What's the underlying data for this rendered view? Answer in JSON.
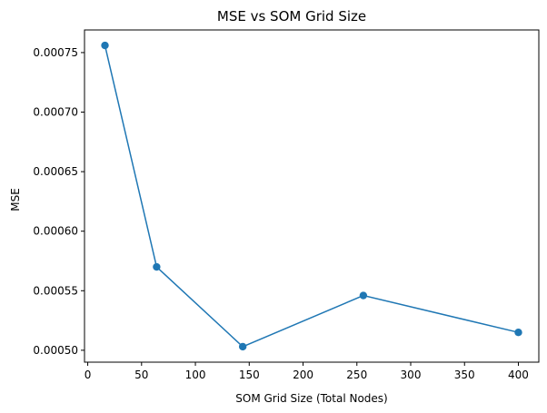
{
  "chart_data": {
    "type": "line",
    "title": "MSE vs SOM Grid Size",
    "xlabel": "SOM Grid Size (Total Nodes)",
    "ylabel": "MSE",
    "xlim": [
      -3,
      419
    ],
    "ylim": [
      0.00049,
      0.000769
    ],
    "x_ticks": [
      0,
      50,
      100,
      150,
      200,
      250,
      300,
      350,
      400
    ],
    "x_tick_labels": [
      "0",
      "50",
      "100",
      "150",
      "200",
      "250",
      "300",
      "350",
      "400"
    ],
    "y_ticks": [
      0.0005,
      0.00055,
      0.0006,
      0.00065,
      0.0007,
      0.00075
    ],
    "y_tick_labels": [
      "0.00050",
      "0.00055",
      "0.00060",
      "0.00065",
      "0.00070",
      "0.00075"
    ],
    "grid": false,
    "series": [
      {
        "color": "#1f77b4",
        "marker": "circle",
        "x": [
          16,
          64,
          144,
          256,
          400
        ],
        "y": [
          0.000756,
          0.00057,
          0.000503,
          0.000546,
          0.000515
        ]
      }
    ]
  }
}
